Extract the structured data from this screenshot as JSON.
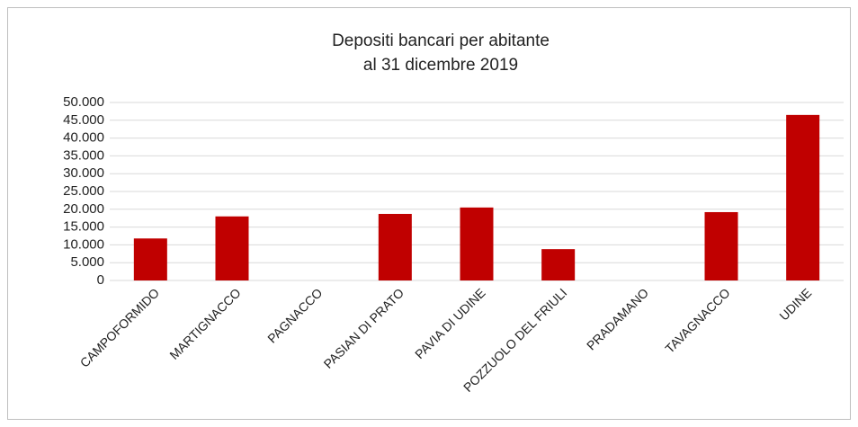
{
  "chart_data": {
    "type": "bar",
    "title": "Depositi bancari per abitante",
    "subtitle": "al 31 dicembre 2019",
    "categories": [
      "CAMPOFORMIDO",
      "MARTIGNACCO",
      "PAGNACCO",
      "PASIAN DI PRATO",
      "PAVIA DI UDINE",
      "POZZUOLO DEL FRIULI",
      "PRADAMANO",
      "TAVAGNACCO",
      "UDINE"
    ],
    "values": [
      11800,
      18000,
      0,
      18700,
      20500,
      8800,
      0,
      19200,
      46500
    ],
    "color": "#c00000",
    "ylim": [
      0,
      50000
    ],
    "yticks": [
      0,
      {
        "value": 5000,
        "label": "5.000"
      },
      {
        "value": 10000,
        "label": "10.000"
      },
      {
        "value": 15000,
        "label": "15.000"
      },
      {
        "value": 20000,
        "label": "20.000"
      },
      {
        "value": 25000,
        "label": "25.000"
      },
      {
        "value": 30000,
        "label": "30.000"
      },
      {
        "value": 35000,
        "label": "35.000"
      },
      {
        "value": 40000,
        "label": "40.000"
      },
      {
        "value": 45000,
        "label": "45.000"
      },
      {
        "value": 50000,
        "label": "50.000"
      }
    ],
    "grid": true
  }
}
